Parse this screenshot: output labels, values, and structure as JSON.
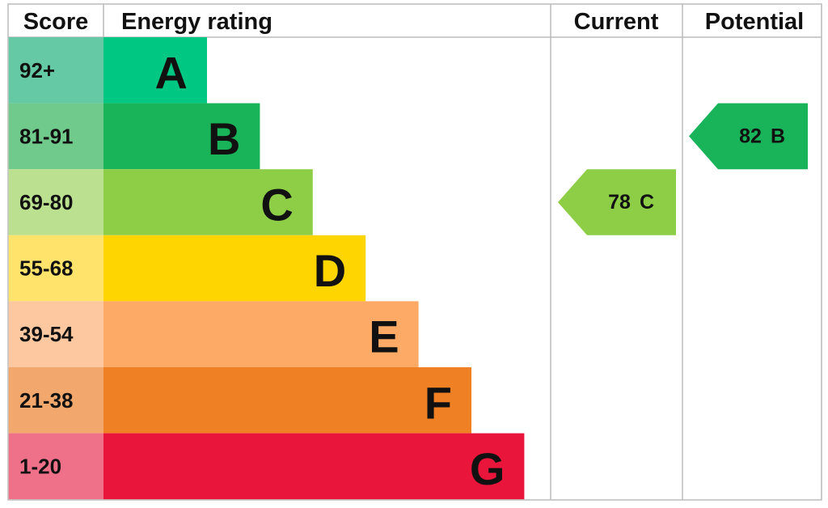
{
  "header": {
    "score": "Score",
    "rating": "Energy rating",
    "current": "Current",
    "potential": "Potential"
  },
  "rows": [
    {
      "score": "92+",
      "band": "A",
      "color": "#00c781",
      "score_color": "#64c9a4"
    },
    {
      "score": "81-91",
      "band": "B",
      "color": "#19b459",
      "score_color": "#6fca8b"
    },
    {
      "score": "69-80",
      "band": "C",
      "color": "#8dce46",
      "score_color": "#bbe08f"
    },
    {
      "score": "55-68",
      "band": "D",
      "color": "#ffd500",
      "score_color": "#ffe36a"
    },
    {
      "score": "39-54",
      "band": "E",
      "color": "#fcaa65",
      "score_color": "#fdc8a0"
    },
    {
      "score": "21-38",
      "band": "F",
      "color": "#ef8023",
      "score_color": "#f2a86c"
    },
    {
      "score": "1-20",
      "band": "G",
      "color": "#e9153b",
      "score_color": "#ef7189"
    }
  ],
  "current": {
    "value": 78,
    "band": "C"
  },
  "potential": {
    "value": 82,
    "band": "B"
  }
}
